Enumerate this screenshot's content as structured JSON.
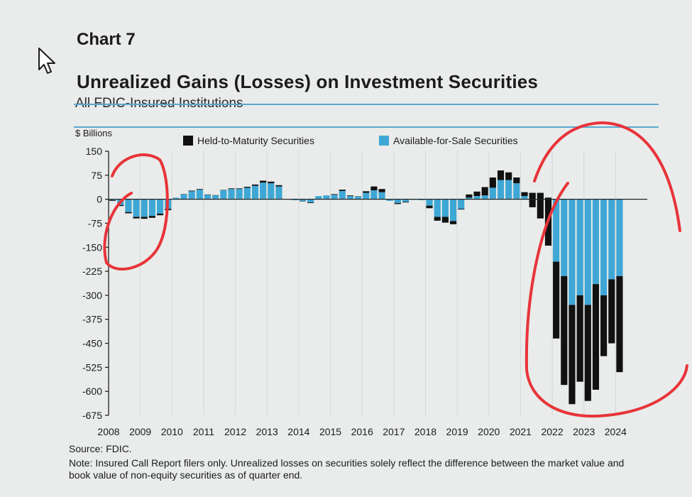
{
  "header": {
    "chart_label": "Chart 7",
    "title": "Unrealized Gains (Losses) on Investment Securities",
    "subtitle": "All FDIC-Insured Institutions"
  },
  "footer": {
    "source": "Source: FDIC.",
    "note": "Note: Insured Call Report filers only. Unrealized losses on securities solely reflect the difference between the market value and book value of non-equity securities as of quarter end."
  },
  "colors": {
    "held_to_maturity": "#111111",
    "available_for_sale": "#3ea7d6",
    "annotation": "#e8343a",
    "accent_rule": "#5aa8cf"
  },
  "icons": {
    "cursor": "mouse-pointer-icon"
  },
  "chart_data": {
    "type": "bar",
    "stacked": true,
    "ylabel": "$ Billions",
    "ylim": [
      -675,
      150
    ],
    "yticks": [
      150,
      75,
      0,
      -75,
      -150,
      -225,
      -300,
      -375,
      -450,
      -525,
      -600,
      -675
    ],
    "ytick_labels": [
      "150",
      "75",
      "0",
      "-75",
      "-150",
      "-225",
      "-300",
      "-375",
      "-450",
      "-525",
      "-600",
      "-675"
    ],
    "year_labels": [
      "2008",
      "2009",
      "2010",
      "2011",
      "2012",
      "2013",
      "2014",
      "2015",
      "2016",
      "2017",
      "2018",
      "2019",
      "2020",
      "2021",
      "2022",
      "2023",
      "2024"
    ],
    "x_start_year": 2008,
    "quarters_per_year": 4,
    "grid": "vertical-yearly",
    "legend_position": "top",
    "series": [
      {
        "name": "Held-to-Maturity Securities",
        "values": [
          -2,
          -3,
          -4,
          -5,
          -6,
          -6,
          -5,
          -4,
          0,
          1,
          2,
          2,
          1,
          1,
          1,
          2,
          2,
          3,
          4,
          6,
          5,
          4,
          0,
          0,
          -1,
          -2,
          0,
          0,
          2,
          4,
          2,
          1,
          5,
          12,
          10,
          0,
          -3,
          -2,
          0,
          0,
          -8,
          -12,
          -18,
          -10,
          2,
          10,
          14,
          26,
          32,
          30,
          24,
          18,
          -12,
          -45,
          -80,
          -150,
          -240,
          -340,
          -310,
          -270,
          -300,
          -330,
          -190,
          -200,
          -300
        ],
        "color": "#111111"
      },
      {
        "name": "Available-for-Sale Securities",
        "values": [
          -3,
          -18,
          -40,
          -55,
          -55,
          -52,
          -45,
          -30,
          5,
          15,
          25,
          30,
          14,
          12,
          28,
          32,
          32,
          36,
          42,
          52,
          50,
          40,
          -1,
          -3,
          -6,
          -10,
          10,
          12,
          14,
          26,
          10,
          8,
          20,
          28,
          22,
          -5,
          -12,
          -8,
          -2,
          -3,
          -20,
          -55,
          -55,
          -68,
          -32,
          5,
          10,
          12,
          36,
          60,
          60,
          50,
          22,
          20,
          20,
          5,
          -195,
          -240,
          -330,
          -300,
          -330,
          -265,
          -300,
          -250,
          -240
        ]
      }
    ],
    "annotations": [
      {
        "shape": "hand-drawn-circle",
        "around": "2008-2009"
      },
      {
        "shape": "hand-drawn-circle",
        "around": "2022-2024"
      }
    ]
  }
}
